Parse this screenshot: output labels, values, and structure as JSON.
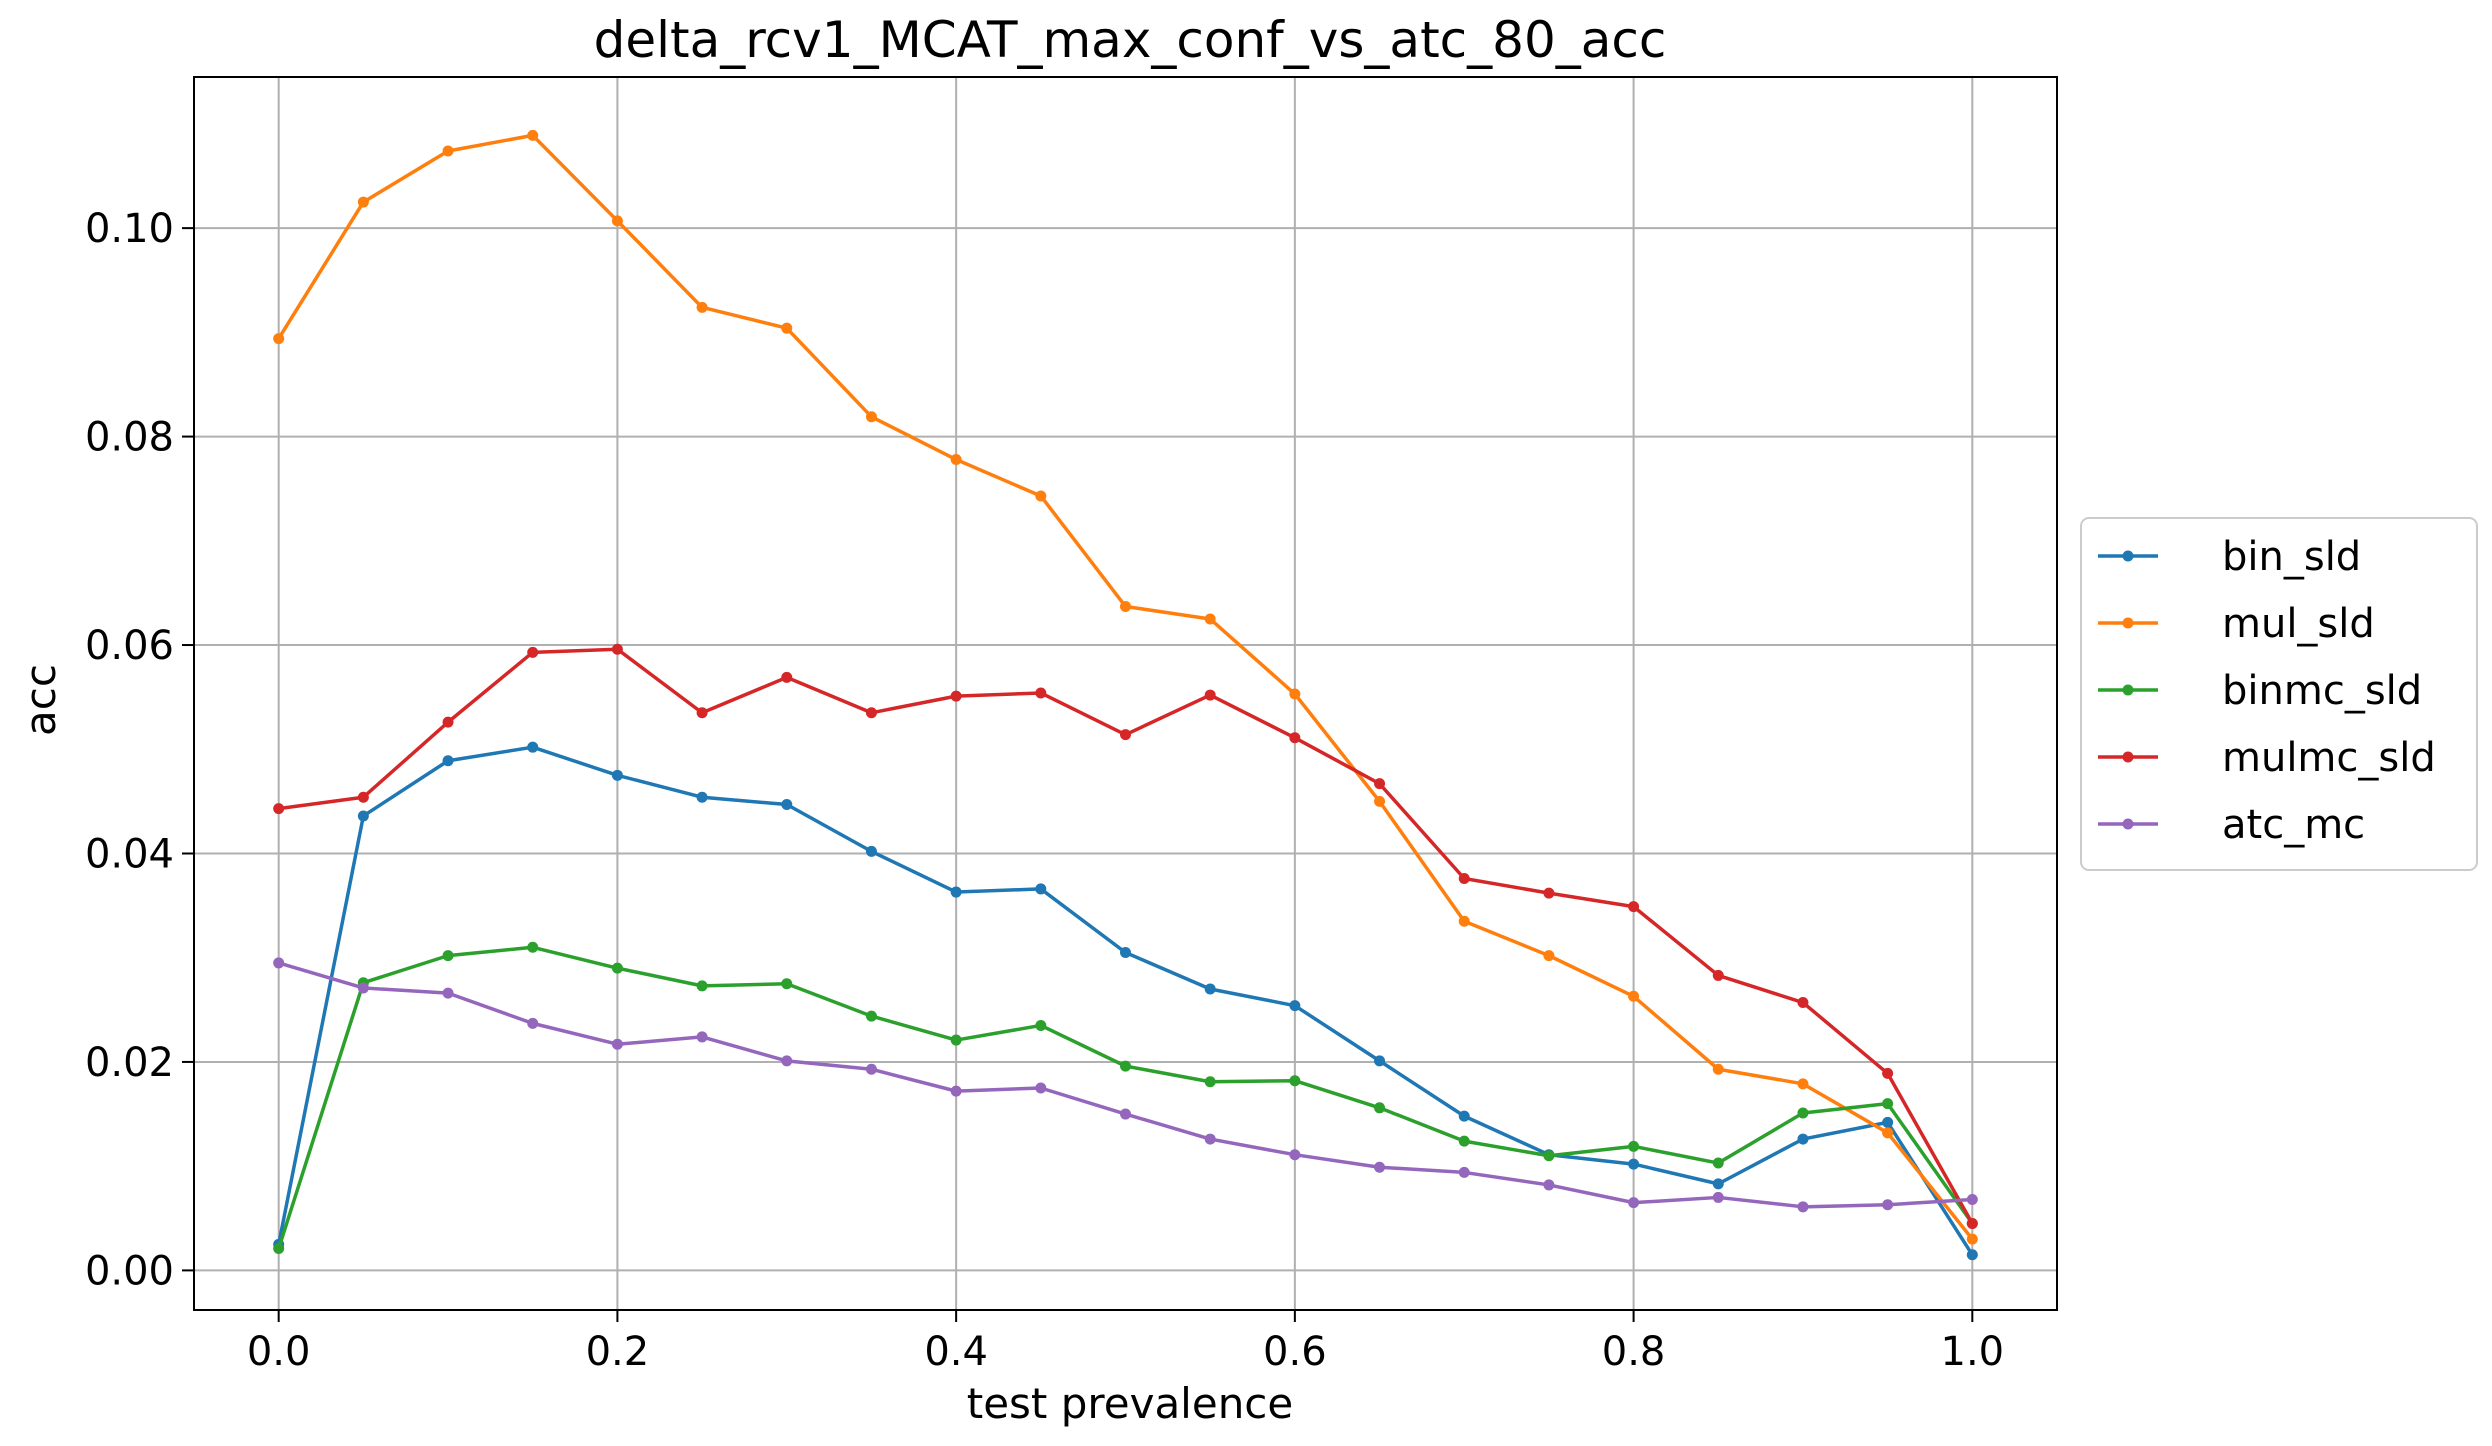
{
  "chart_data": {
    "type": "line",
    "title": "delta_rcv1_MCAT_max_conf_vs_atc_80_acc",
    "xlabel": "test prevalence",
    "ylabel": "acc",
    "xlim": [
      -0.05,
      1.05
    ],
    "ylim": [
      -0.0038,
      0.1145
    ],
    "grid": true,
    "legend_position": "center-right-outside",
    "x_ticks": [
      0.0,
      0.2,
      0.4,
      0.6,
      0.8,
      1.0
    ],
    "x_tick_labels": [
      "0.0",
      "0.2",
      "0.4",
      "0.6",
      "0.8",
      "1.0"
    ],
    "y_ticks": [
      0.0,
      0.02,
      0.04,
      0.06,
      0.08,
      0.1
    ],
    "y_tick_labels": [
      "0.00",
      "0.02",
      "0.04",
      "0.06",
      "0.08",
      "0.10"
    ],
    "x": [
      0.0,
      0.05,
      0.1,
      0.15,
      0.2,
      0.25,
      0.3,
      0.35,
      0.4,
      0.45,
      0.5,
      0.55,
      0.6,
      0.65,
      0.7,
      0.75,
      0.8,
      0.85,
      0.9,
      0.95,
      1.0
    ],
    "series": [
      {
        "name": "bin_sld",
        "color": "#1f77b4",
        "values": [
          0.0025,
          0.0436,
          0.0489,
          0.0502,
          0.0475,
          0.0454,
          0.0447,
          0.0402,
          0.0363,
          0.0366,
          0.0305,
          0.027,
          0.0254,
          0.0201,
          0.0148,
          0.0111,
          0.0102,
          0.0083,
          0.0126,
          0.0142,
          0.0015
        ]
      },
      {
        "name": "mul_sld",
        "color": "#ff7f0e",
        "values": [
          0.0894,
          0.1025,
          0.1074,
          0.1089,
          0.1007,
          0.0924,
          0.0904,
          0.0819,
          0.0778,
          0.0743,
          0.0637,
          0.0625,
          0.0553,
          0.045,
          0.0335,
          0.0302,
          0.0263,
          0.0193,
          0.0179,
          0.0132,
          0.003
        ]
      },
      {
        "name": "binmc_sld",
        "color": "#2ca02c",
        "values": [
          0.0021,
          0.0276,
          0.0302,
          0.031,
          0.029,
          0.0273,
          0.0275,
          0.0244,
          0.0221,
          0.0235,
          0.0196,
          0.0181,
          0.0182,
          0.0156,
          0.0124,
          0.011,
          0.0119,
          0.0103,
          0.0151,
          0.016,
          0.0045
        ]
      },
      {
        "name": "mulmc_sld",
        "color": "#d62728",
        "values": [
          0.0443,
          0.0454,
          0.0526,
          0.0593,
          0.0596,
          0.0535,
          0.0569,
          0.0535,
          0.0551,
          0.0554,
          0.0514,
          0.0552,
          0.0511,
          0.0467,
          0.0376,
          0.0362,
          0.0349,
          0.0283,
          0.0257,
          0.0189,
          0.0045
        ]
      },
      {
        "name": "atc_mc",
        "color": "#9467bd",
        "values": [
          0.0295,
          0.0271,
          0.0266,
          0.0237,
          0.0217,
          0.0224,
          0.0201,
          0.0193,
          0.0172,
          0.0175,
          0.015,
          0.0126,
          0.0111,
          0.0099,
          0.0094,
          0.0082,
          0.0065,
          0.007,
          0.0061,
          0.0063,
          0.0068
        ]
      }
    ]
  }
}
